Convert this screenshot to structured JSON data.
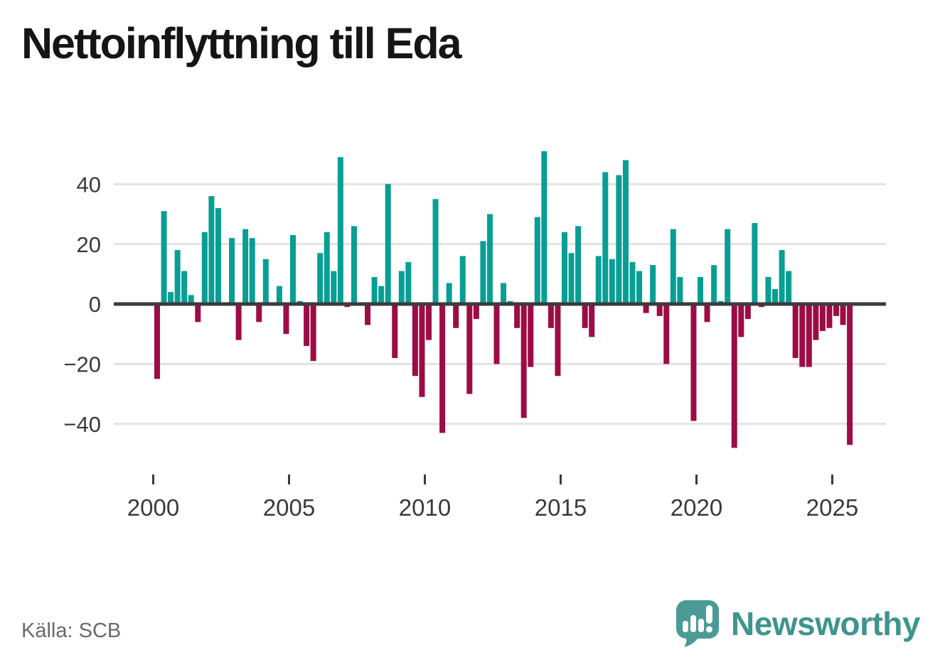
{
  "title": "Nettoinflyttning till Eda",
  "source": "Källa: SCB",
  "branding": {
    "name": "Newsworthy",
    "icon": "newsworthy-speech-bubble-chart-icon",
    "text_color": "#3E948E",
    "icon_color": "#4A9B95"
  },
  "chart_data": {
    "type": "bar",
    "title": "Nettoinflyttning till Eda",
    "frequency": "quarterly",
    "x_start": {
      "year": 2000,
      "quarter": 1
    },
    "values": [
      -25,
      31,
      4,
      18,
      11,
      3,
      -6,
      24,
      36,
      32,
      0,
      22,
      -12,
      25,
      22,
      -6,
      15,
      0,
      6,
      -10,
      23,
      1,
      -14,
      -19,
      17,
      24,
      11,
      49,
      -1,
      26,
      0,
      -7,
      9,
      6,
      40,
      -18,
      11,
      14,
      -24,
      -31,
      -12,
      35,
      -43,
      7,
      -8,
      16,
      -30,
      -5,
      21,
      30,
      -20,
      7,
      1,
      -8,
      -38,
      -21,
      29,
      51,
      -8,
      -24,
      24,
      17,
      26,
      -8,
      -11,
      16,
      44,
      15,
      43,
      48,
      14,
      11,
      -3,
      13,
      -4,
      -20,
      25,
      9,
      0,
      -39,
      9,
      -6,
      13,
      1,
      25,
      -48,
      -11,
      -5,
      27,
      -1,
      9,
      5,
      18,
      11,
      -18,
      -21,
      -21,
      -12,
      -9,
      -8,
      -4,
      -7,
      -47
    ],
    "x_tick_labels": [
      "2000",
      "2005",
      "2010",
      "2015",
      "2020",
      "2025"
    ],
    "y_ticks": [
      40,
      20,
      0,
      -20,
      -40
    ],
    "ylim": [
      -52,
      55
    ],
    "grid": "horizontal",
    "legend": "none",
    "positive_color": "#089E94",
    "negative_color": "#9D0C44",
    "zero_line_color": "#3B3B3B",
    "gridline_color": "#E2E2E2",
    "axis_label_color": "#3A3A3A"
  }
}
